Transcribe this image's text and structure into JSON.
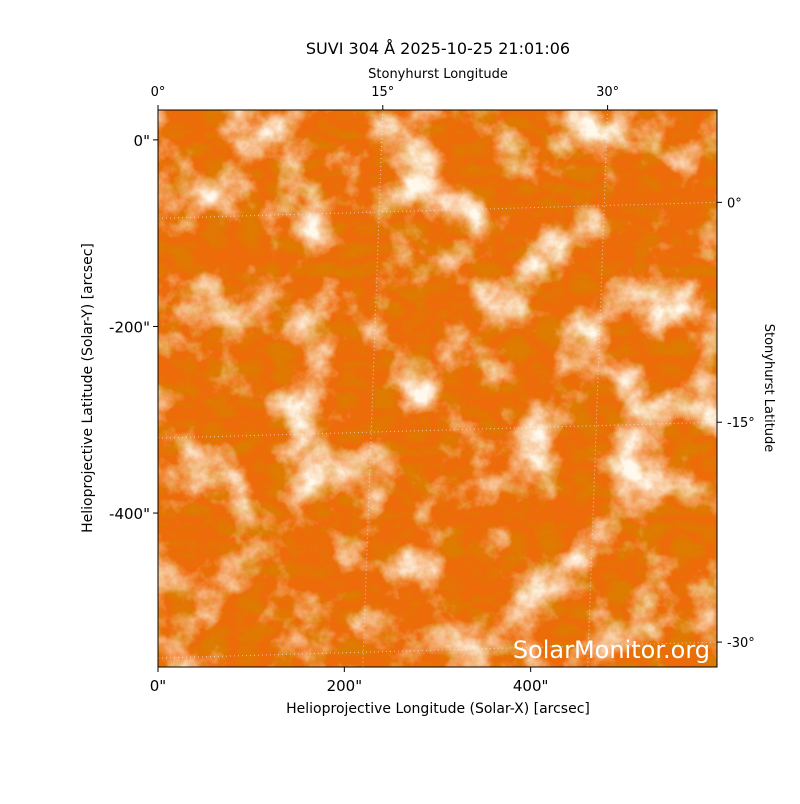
{
  "chart_data": {
    "type": "image",
    "title": "SUVI 304 Å 2025-10-25 21:01:06",
    "x_label": "Helioprojective Longitude (Solar-X) [arcsec]",
    "y_label": "Helioprojective Latitude (Solar-Y) [arcsec]",
    "x2_label": "Stonyhurst Longitude",
    "y2_label": "Stonyhurst Latitude",
    "watermark": "SolarMonitor.org",
    "xlim": [
      0,
      600
    ],
    "ylim": [
      -565,
      32
    ],
    "xticks": [
      {
        "value": 0,
        "label": "0\""
      },
      {
        "value": 200,
        "label": "200\""
      },
      {
        "value": 400,
        "label": "400\""
      }
    ],
    "yticks": [
      {
        "value": 0,
        "label": "0\""
      },
      {
        "value": -200,
        "label": "-200\""
      },
      {
        "value": -400,
        "label": "-400\""
      }
    ],
    "x2lim": [
      0,
      37.3
    ],
    "x2ticks": [
      {
        "value": 0,
        "label": "0°"
      },
      {
        "value": 15,
        "label": "15°"
      },
      {
        "value": 30,
        "label": "30°"
      }
    ],
    "y2lim": [
      -31.7,
      6.3
    ],
    "y2ticks": [
      {
        "value": 0,
        "label": "0°"
      },
      {
        "value": -15,
        "label": "-15°"
      },
      {
        "value": -30,
        "label": "-30°"
      }
    ]
  }
}
